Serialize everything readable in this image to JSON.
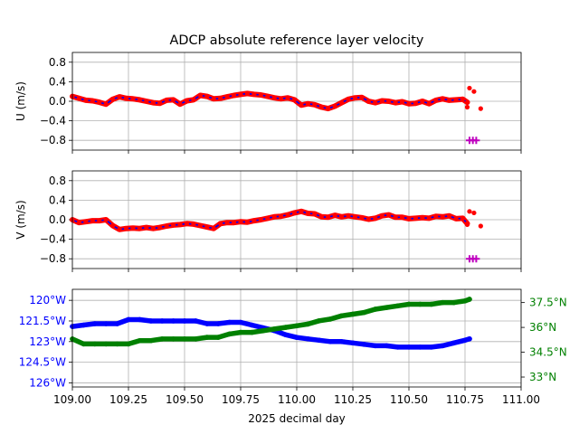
{
  "title": "ADCP absolute reference layer velocity",
  "colors": {
    "u_line": "#0000ff",
    "u_points": "#ff0000",
    "flag": "#bf00bf",
    "lon": "#0000ff",
    "lat": "#008000",
    "grid": "#b0b0b0"
  },
  "chart_data": [
    {
      "type": "line",
      "ylabel": "U (m/s)",
      "xlim": [
        109.0,
        111.0
      ],
      "ylim": [
        -1.0,
        1.0
      ],
      "yticks": [
        -0.8,
        -0.4,
        0.0,
        0.4,
        0.8
      ],
      "ytick_labels": [
        "−0.8",
        "−0.4",
        "0.0",
        "0.4",
        "0.8"
      ],
      "xticks": [
        109.0,
        109.25,
        109.5,
        109.75,
        110.0,
        110.25,
        110.5,
        110.75,
        111.0
      ],
      "grid": true,
      "series": [
        {
          "style": "line+points",
          "x": [
            109.0,
            109.03,
            109.06,
            109.09,
            109.12,
            109.15,
            109.18,
            109.21,
            109.24,
            109.27,
            109.3,
            109.33,
            109.36,
            109.39,
            109.42,
            109.45,
            109.48,
            109.51,
            109.54,
            109.57,
            109.6,
            109.63,
            109.66,
            109.69,
            109.72,
            109.75,
            109.78,
            109.81,
            109.84,
            109.87,
            109.9,
            109.93,
            109.96,
            109.99,
            110.02,
            110.05,
            110.08,
            110.11,
            110.14,
            110.17,
            110.2,
            110.23,
            110.26,
            110.29,
            110.32,
            110.35,
            110.38,
            110.41,
            110.44,
            110.47,
            110.5,
            110.53,
            110.56,
            110.59,
            110.62,
            110.65,
            110.68,
            110.71,
            110.74,
            110.76
          ],
          "y": [
            0.1,
            0.06,
            0.02,
            0.01,
            -0.02,
            -0.06,
            0.04,
            0.09,
            0.06,
            0.05,
            0.03,
            0.0,
            -0.03,
            -0.04,
            0.02,
            0.03,
            -0.06,
            0.01,
            0.03,
            0.12,
            0.1,
            0.05,
            0.06,
            0.09,
            0.12,
            0.14,
            0.16,
            0.14,
            0.13,
            0.1,
            0.07,
            0.05,
            0.07,
            0.03,
            -0.08,
            -0.05,
            -0.07,
            -0.12,
            -0.15,
            -0.1,
            -0.03,
            0.04,
            0.07,
            0.08,
            0.0,
            -0.03,
            0.01,
            0.0,
            -0.03,
            -0.01,
            -0.05,
            -0.04,
            0.0,
            -0.05,
            0.02,
            0.05,
            0.02,
            0.03,
            0.04,
            -0.02
          ]
        },
        {
          "style": "points",
          "x": [
            110.76,
            110.77,
            110.79,
            110.82
          ],
          "y": [
            -0.12,
            0.27,
            0.2,
            -0.15
          ]
        },
        {
          "style": "flag-markers",
          "x": [
            110.77,
            110.785,
            110.8
          ],
          "y": [
            -0.8,
            -0.8,
            -0.8
          ]
        }
      ]
    },
    {
      "type": "line",
      "ylabel": "V (m/s)",
      "xlim": [
        109.0,
        111.0
      ],
      "ylim": [
        -1.0,
        1.0
      ],
      "yticks": [
        -0.8,
        -0.4,
        0.0,
        0.4,
        0.8
      ],
      "ytick_labels": [
        "−0.8",
        "−0.4",
        "0.0",
        "0.4",
        "0.8"
      ],
      "xticks": [
        109.0,
        109.25,
        109.5,
        109.75,
        110.0,
        110.25,
        110.5,
        110.75,
        111.0
      ],
      "grid": true,
      "series": [
        {
          "style": "line+points",
          "x": [
            109.0,
            109.03,
            109.06,
            109.09,
            109.12,
            109.15,
            109.18,
            109.21,
            109.24,
            109.27,
            109.3,
            109.33,
            109.36,
            109.39,
            109.42,
            109.45,
            109.48,
            109.51,
            109.54,
            109.57,
            109.6,
            109.63,
            109.66,
            109.69,
            109.72,
            109.75,
            109.78,
            109.81,
            109.84,
            109.87,
            109.9,
            109.93,
            109.96,
            109.99,
            110.02,
            110.05,
            110.08,
            110.11,
            110.14,
            110.17,
            110.2,
            110.23,
            110.26,
            110.29,
            110.32,
            110.35,
            110.38,
            110.41,
            110.44,
            110.47,
            110.5,
            110.53,
            110.56,
            110.59,
            110.62,
            110.65,
            110.68,
            110.71,
            110.74,
            110.76
          ],
          "y": [
            0.0,
            -0.06,
            -0.04,
            -0.02,
            -0.02,
            0.0,
            -0.12,
            -0.2,
            -0.18,
            -0.17,
            -0.18,
            -0.16,
            -0.18,
            -0.16,
            -0.13,
            -0.11,
            -0.1,
            -0.08,
            -0.09,
            -0.12,
            -0.15,
            -0.18,
            -0.08,
            -0.06,
            -0.06,
            -0.04,
            -0.05,
            -0.02,
            0.0,
            0.03,
            0.06,
            0.07,
            0.1,
            0.14,
            0.17,
            0.13,
            0.12,
            0.06,
            0.05,
            0.09,
            0.06,
            0.08,
            0.06,
            0.04,
            0.01,
            0.03,
            0.08,
            0.1,
            0.05,
            0.05,
            0.02,
            0.03,
            0.04,
            0.03,
            0.07,
            0.06,
            0.08,
            0.02,
            0.03,
            -0.08
          ]
        },
        {
          "style": "points",
          "x": [
            110.76,
            110.77,
            110.79,
            110.82
          ],
          "y": [
            -0.1,
            0.17,
            0.14,
            -0.13
          ]
        },
        {
          "style": "flag-markers",
          "x": [
            110.77,
            110.785,
            110.8
          ],
          "y": [
            -0.8,
            -0.8,
            -0.8
          ]
        }
      ]
    },
    {
      "type": "line",
      "xlabel": "2025 decimal day",
      "xlim": [
        109.0,
        111.0
      ],
      "xticks": [
        109.0,
        109.25,
        109.5,
        109.75,
        110.0,
        110.25,
        110.5,
        110.75,
        111.0
      ],
      "xtick_labels": [
        "109.00",
        "109.25",
        "109.50",
        "109.75",
        "110.00",
        "110.25",
        "110.50",
        "110.75",
        "111.00"
      ],
      "grid": true,
      "left_axis": {
        "ylim": [
          -126.3,
          -119.2
        ],
        "yticks": [
          -126.0,
          -124.5,
          -123.0,
          -121.5,
          -120.0
        ],
        "ytick_labels": [
          "126°W",
          "124.5°W",
          "123°W",
          "121.5°W",
          "120°W"
        ]
      },
      "right_axis": {
        "ylim": [
          32.4,
          38.3
        ],
        "yticks": [
          33.0,
          34.5,
          36.0,
          37.5
        ],
        "ytick_labels": [
          "33°N",
          "34.5°N",
          "36°N",
          "37.5°N"
        ]
      },
      "series": [
        {
          "axis": "left",
          "x": [
            109.0,
            109.05,
            109.1,
            109.15,
            109.2,
            109.25,
            109.3,
            109.35,
            109.4,
            109.45,
            109.5,
            109.55,
            109.6,
            109.65,
            109.7,
            109.75,
            109.8,
            109.85,
            109.9,
            109.95,
            110.0,
            110.05,
            110.1,
            110.15,
            110.2,
            110.25,
            110.3,
            110.35,
            110.4,
            110.45,
            110.5,
            110.55,
            110.6,
            110.65,
            110.7,
            110.75,
            110.77
          ],
          "y": [
            -121.9,
            -121.8,
            -121.7,
            -121.7,
            -121.7,
            -121.4,
            -121.4,
            -121.5,
            -121.5,
            -121.5,
            -121.5,
            -121.5,
            -121.7,
            -121.7,
            -121.6,
            -121.6,
            -121.8,
            -122.0,
            -122.2,
            -122.5,
            -122.7,
            -122.8,
            -122.9,
            -123.0,
            -123.0,
            -123.1,
            -123.2,
            -123.3,
            -123.3,
            -123.4,
            -123.4,
            -123.4,
            -123.4,
            -123.3,
            -123.1,
            -122.9,
            -122.8
          ]
        },
        {
          "axis": "right",
          "x": [
            109.0,
            109.05,
            109.1,
            109.15,
            109.2,
            109.25,
            109.3,
            109.35,
            109.4,
            109.45,
            109.5,
            109.55,
            109.6,
            109.65,
            109.7,
            109.75,
            109.8,
            109.85,
            109.9,
            109.95,
            110.0,
            110.05,
            110.1,
            110.15,
            110.2,
            110.25,
            110.3,
            110.35,
            110.4,
            110.45,
            110.5,
            110.55,
            110.6,
            110.65,
            110.7,
            110.75,
            110.77
          ],
          "y": [
            35.3,
            35.0,
            35.0,
            35.0,
            35.0,
            35.0,
            35.2,
            35.2,
            35.3,
            35.3,
            35.3,
            35.3,
            35.4,
            35.4,
            35.6,
            35.7,
            35.7,
            35.8,
            35.9,
            36.0,
            36.1,
            36.2,
            36.4,
            36.5,
            36.7,
            36.8,
            36.9,
            37.1,
            37.2,
            37.3,
            37.4,
            37.4,
            37.4,
            37.5,
            37.5,
            37.6,
            37.7
          ]
        }
      ]
    }
  ]
}
